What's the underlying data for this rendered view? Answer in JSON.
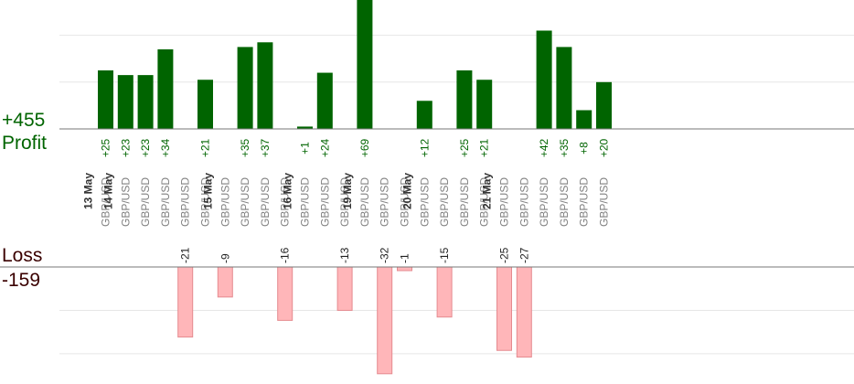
{
  "summary": {
    "profit_total": "+455",
    "profit_label": "Profit",
    "loss_label": "Loss",
    "loss_total": "-159"
  },
  "colors": {
    "profit_fill": "#006400",
    "profit_text": "#006400",
    "loss_fill": "#ffb6b9",
    "loss_stroke": "#e58a8f",
    "pair_text": "#808080",
    "date_text": "#333333",
    "grid": "#e6e6e6",
    "axis": "#777777"
  },
  "chart_data": {
    "type": "bar",
    "profit_scale_max": 50,
    "loss_scale_max": 40,
    "trades": [
      {
        "date": "13 May",
        "pair": "GBP/USD",
        "value": 25,
        "label": "+25"
      },
      {
        "date": "14 May",
        "pair": "GBP/USD",
        "value": 23,
        "label": "+23"
      },
      {
        "date": "",
        "pair": "GBP/USD",
        "value": 23,
        "label": "+23"
      },
      {
        "date": "",
        "pair": "GBP/USD",
        "value": 34,
        "label": "+34"
      },
      {
        "date": "",
        "pair": "GBP/USD",
        "value": -21,
        "label": "-21"
      },
      {
        "date": "",
        "pair": "GBP/USD",
        "value": 21,
        "label": "+21"
      },
      {
        "date": "15 May",
        "pair": "GBP/USD",
        "value": -9,
        "label": "-9"
      },
      {
        "date": "",
        "pair": "GBP/USD",
        "value": 35,
        "label": "+35"
      },
      {
        "date": "",
        "pair": "GBP/USD",
        "value": 37,
        "label": "+37"
      },
      {
        "date": "",
        "pair": "GBP/USD",
        "value": -16,
        "label": "-16"
      },
      {
        "date": "16 May",
        "pair": "GBP/USD",
        "value": 1,
        "label": "+1"
      },
      {
        "date": "",
        "pair": "GBP/USD",
        "value": 24,
        "label": "+24"
      },
      {
        "date": "",
        "pair": "GBP/USD",
        "value": -13,
        "label": "-13"
      },
      {
        "date": "19 May",
        "pair": "GBP/USD",
        "value": 69,
        "label": "+69"
      },
      {
        "date": "",
        "pair": "GBP/USD",
        "value": -32,
        "label": "-32"
      },
      {
        "date": "",
        "pair": "GBP/USD",
        "value": -1,
        "label": "-1"
      },
      {
        "date": "20 May",
        "pair": "GBP/USD",
        "value": 12,
        "label": "+12"
      },
      {
        "date": "",
        "pair": "GBP/USD",
        "value": -15,
        "label": "-15"
      },
      {
        "date": "",
        "pair": "GBP/USD",
        "value": 25,
        "label": "+25"
      },
      {
        "date": "",
        "pair": "GBP/USD",
        "value": 21,
        "label": "+21"
      },
      {
        "date": "21 May",
        "pair": "GBP/USD",
        "value": -25,
        "label": "-25"
      },
      {
        "date": "",
        "pair": "GBP/USD",
        "value": -27,
        "label": "-27"
      },
      {
        "date": "",
        "pair": "GBP/USD",
        "value": 42,
        "label": "+42"
      },
      {
        "date": "",
        "pair": "GBP/USD",
        "value": 35,
        "label": "+35"
      },
      {
        "date": "",
        "pair": "GBP/USD",
        "value": 8,
        "label": "+8"
      },
      {
        "date": "",
        "pair": "GBP/USD",
        "value": 20,
        "label": "+20"
      }
    ]
  }
}
